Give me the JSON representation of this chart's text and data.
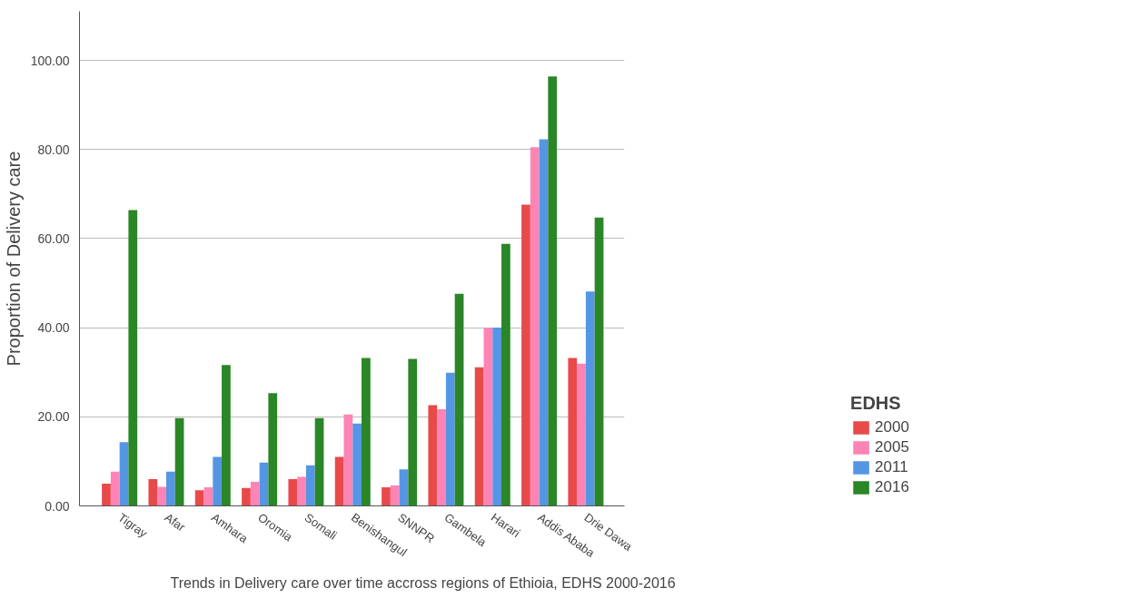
{
  "chart_data": {
    "type": "bar",
    "ylabel": "Proportion of Delivery care",
    "legend_title": "EDHS",
    "annotations": [
      "Trends in Delivery care over time accross regions of Ethioia, EDHS 2000-2016"
    ],
    "categories": [
      "Tigray",
      "Afar",
      "Amhara",
      "Oromia",
      "Somali",
      "Benishangul",
      "SNNPR",
      "Gambela",
      "Harari",
      "Addis Ababa",
      "Drie Dawa"
    ],
    "series": [
      {
        "name": "2000",
        "color": "#e84a4a",
        "values": [
          5.0,
          6.0,
          3.5,
          4.0,
          6.0,
          11.0,
          4.2,
          22.6,
          31.1,
          67.6,
          33.2
        ]
      },
      {
        "name": "2005",
        "color": "#fd84b4",
        "values": [
          7.7,
          4.3,
          4.2,
          5.4,
          6.5,
          20.5,
          4.6,
          21.7,
          40.0,
          80.5,
          31.9
        ]
      },
      {
        "name": "2011",
        "color": "#5596e4",
        "values": [
          14.3,
          7.7,
          11.0,
          9.7,
          9.1,
          18.5,
          8.2,
          29.9,
          40.0,
          82.3,
          48.1
        ]
      },
      {
        "name": "2016",
        "color": "#2a8627",
        "values": [
          66.4,
          19.7,
          31.6,
          25.3,
          19.7,
          33.2,
          33.0,
          47.6,
          58.8,
          96.4,
          64.7
        ]
      }
    ],
    "ylim": [
      0,
      111
    ],
    "yticks": [
      {
        "value": 0,
        "label": "0.00"
      },
      {
        "value": 20,
        "label": "20.00"
      },
      {
        "value": 40,
        "label": "40.00"
      },
      {
        "value": 60,
        "label": "60.00"
      },
      {
        "value": 80,
        "label": "80.00"
      },
      {
        "value": 100,
        "label": "100.00"
      }
    ],
    "grid": "y",
    "legend": "bottom right"
  }
}
